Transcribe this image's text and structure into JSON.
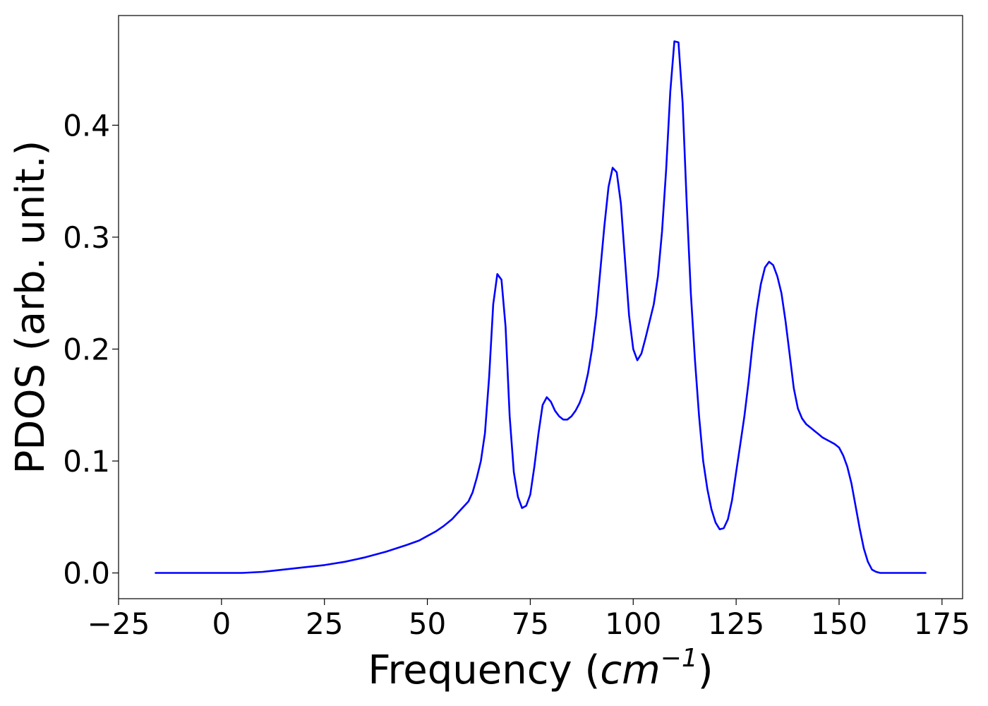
{
  "chart_data": {
    "type": "line",
    "title": "",
    "xlabel": {
      "prefix": "Frequency (",
      "unit": "cm",
      "exponent": "−1",
      "suffix": ")"
    },
    "ylabel": "PDOS (arb. unit.)",
    "xlim": [
      -25,
      180
    ],
    "ylim": [
      -0.023,
      0.498
    ],
    "xticks": [
      -25,
      0,
      25,
      50,
      75,
      100,
      125,
      150,
      175
    ],
    "xtick_labels": [
      "−25",
      "0",
      "25",
      "50",
      "75",
      "100",
      "125",
      "150",
      "175"
    ],
    "yticks": [
      0.0,
      0.1,
      0.2,
      0.3,
      0.4
    ],
    "ytick_labels": [
      "0.0",
      "0.1",
      "0.2",
      "0.3",
      "0.4"
    ],
    "grid": false,
    "legend": "none",
    "series": [
      {
        "color": "#0000ff",
        "x": [
          -16,
          -10,
          -5,
          0,
          5,
          10,
          15,
          20,
          25,
          30,
          35,
          40,
          45,
          48,
          50,
          52,
          54,
          56,
          58,
          60,
          61,
          62,
          63,
          64,
          65,
          66,
          67,
          68,
          69,
          70,
          71,
          72,
          73,
          74,
          75,
          76,
          77,
          78,
          79,
          80,
          81,
          82,
          83,
          84,
          85,
          86,
          87,
          88,
          89,
          90,
          91,
          92,
          93,
          94,
          95,
          96,
          97,
          98,
          99,
          100,
          101,
          102,
          103,
          104,
          105,
          106,
          107,
          108,
          109,
          110,
          111,
          112,
          113,
          114,
          115,
          116,
          117,
          118,
          119,
          120,
          121,
          122,
          123,
          124,
          125,
          126,
          127,
          128,
          129,
          130,
          131,
          132,
          133,
          134,
          135,
          136,
          137,
          138,
          139,
          140,
          141,
          142,
          143,
          144,
          145,
          146,
          147,
          148,
          149,
          150,
          151,
          152,
          153,
          154,
          155,
          156,
          157,
          158,
          159,
          160,
          165,
          171
        ],
        "y": [
          0.0,
          0.0,
          0.0,
          0.0,
          0.0,
          0.001,
          0.003,
          0.005,
          0.007,
          0.01,
          0.014,
          0.019,
          0.025,
          0.029,
          0.033,
          0.037,
          0.042,
          0.048,
          0.056,
          0.064,
          0.072,
          0.085,
          0.1,
          0.125,
          0.175,
          0.24,
          0.267,
          0.262,
          0.22,
          0.14,
          0.09,
          0.068,
          0.058,
          0.06,
          0.07,
          0.095,
          0.125,
          0.15,
          0.157,
          0.153,
          0.145,
          0.14,
          0.137,
          0.137,
          0.14,
          0.145,
          0.152,
          0.162,
          0.178,
          0.2,
          0.23,
          0.27,
          0.31,
          0.345,
          0.362,
          0.358,
          0.33,
          0.28,
          0.23,
          0.2,
          0.19,
          0.196,
          0.21,
          0.225,
          0.24,
          0.265,
          0.305,
          0.36,
          0.43,
          0.475,
          0.474,
          0.42,
          0.33,
          0.25,
          0.19,
          0.14,
          0.1,
          0.075,
          0.057,
          0.045,
          0.039,
          0.04,
          0.048,
          0.065,
          0.09,
          0.115,
          0.14,
          0.17,
          0.205,
          0.235,
          0.258,
          0.273,
          0.278,
          0.275,
          0.265,
          0.25,
          0.225,
          0.195,
          0.165,
          0.147,
          0.138,
          0.133,
          0.13,
          0.127,
          0.124,
          0.121,
          0.119,
          0.117,
          0.115,
          0.112,
          0.105,
          0.095,
          0.08,
          0.06,
          0.04,
          0.022,
          0.01,
          0.003,
          0.001,
          0.0,
          0.0,
          0.0
        ]
      }
    ]
  }
}
